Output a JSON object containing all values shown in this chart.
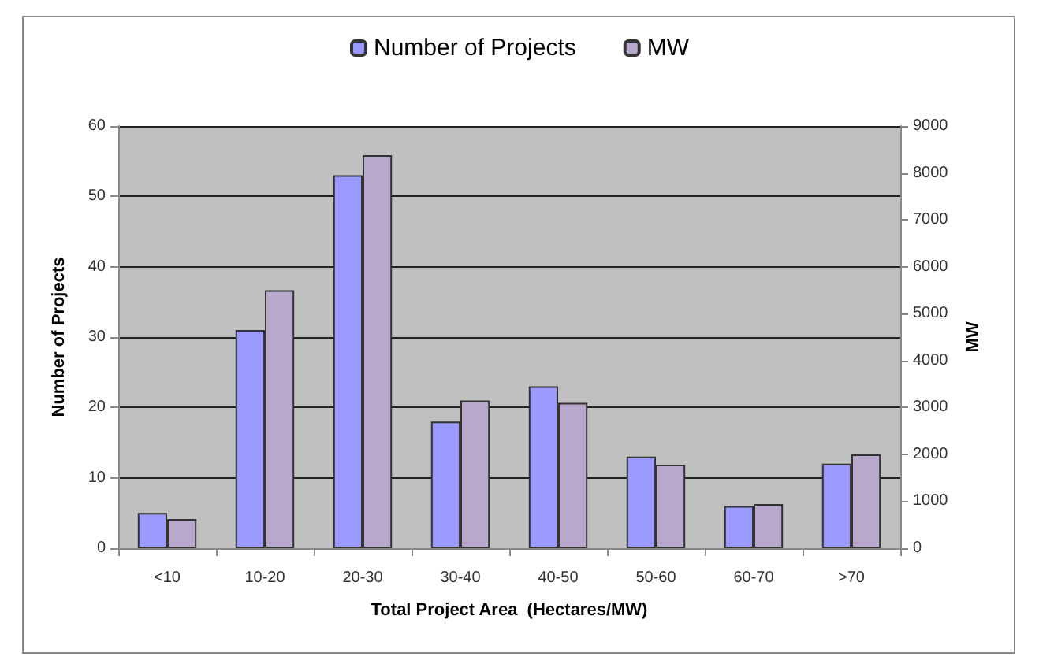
{
  "chart_data": {
    "type": "bar",
    "categories": [
      "<10",
      "10-20",
      "20-30",
      "30-40",
      "40-50",
      "50-60",
      "60-70",
      ">70"
    ],
    "series": [
      {
        "name": "Number of Projects",
        "color": "#9999ff",
        "values": [
          5,
          31,
          53,
          18,
          23,
          13,
          6,
          12
        ]
      },
      {
        "name": "MW",
        "color": "#b8a8cc",
        "axis": "y2",
        "values": [
          620,
          5500,
          8380,
          3150,
          3100,
          1780,
          940,
          2000
        ]
      }
    ],
    "xlabel": "Total Project Area  (Hectares/MW)",
    "ylabel": "Number of Projects",
    "y2label": "MW",
    "ylim": [
      0,
      60
    ],
    "yticks": [
      0,
      10,
      20,
      30,
      40,
      50,
      60
    ],
    "y2lim": [
      0,
      9000
    ],
    "y2ticks": [
      0,
      1000,
      2000,
      3000,
      4000,
      5000,
      6000,
      7000,
      8000,
      9000
    ],
    "grid": "y",
    "legend": "top"
  }
}
